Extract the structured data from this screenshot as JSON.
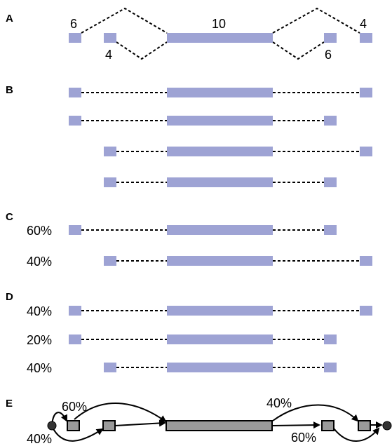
{
  "panels": {
    "a": {
      "label": "A",
      "lengths": {
        "exon1": "6",
        "exon2": "4",
        "exon3": "10",
        "exon4": "6",
        "exon5": "4"
      }
    },
    "b": {
      "label": "B"
    },
    "c": {
      "label": "C",
      "rows": [
        "60%",
        "40%"
      ]
    },
    "d": {
      "label": "D",
      "rows": [
        "40%",
        "20%",
        "40%"
      ]
    },
    "e": {
      "label": "E",
      "edge_labels": {
        "top_left": "60%",
        "bottom_left": "40%",
        "top_right": "40%",
        "bottom_right": "60%"
      }
    }
  },
  "colors": {
    "exon": "#9ea3d4",
    "exon_graph": "#9a9a9a",
    "line": "#000000"
  }
}
